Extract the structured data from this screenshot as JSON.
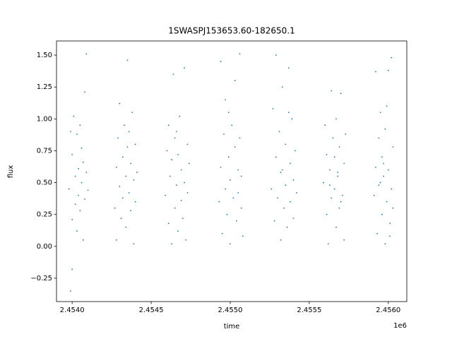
{
  "chart_data": {
    "type": "scatter",
    "title": "1SWASPJ153653.60-182650.1",
    "x_label": "time",
    "y_label": "flux",
    "x_offset_label": "1e6",
    "color": "#1f77b4",
    "xlim": [
      2.453901,
      2.456117
    ],
    "ylim": [
      -0.433,
      1.611
    ],
    "xticks": [
      {
        "value": 2.454,
        "label": "2.4540"
      },
      {
        "value": 2.4545,
        "label": "2.4545"
      },
      {
        "value": 2.455,
        "label": "2.4550"
      },
      {
        "value": 2.4555,
        "label": "2.4555"
      },
      {
        "value": 2.456,
        "label": "2.4560"
      }
    ],
    "yticks": [
      {
        "value": -0.25,
        "label": "−0.25"
      },
      {
        "value": 0,
        "label": "0.00"
      },
      0.25,
      {
        "value": 0.5,
        "label": "0.50"
      },
      0.75,
      {
        "value": 1,
        "label": "1.00"
      },
      1.25,
      {
        "value": 1.5,
        "label": "1.50"
      }
    ],
    "x": [
      2.45398,
      2.45399,
      2.454,
      2.454,
      2.45401,
      2.45402,
      2.45402,
      2.45403,
      2.45403,
      2.45404,
      2.45404,
      2.45405,
      2.45405,
      2.45406,
      2.45406,
      2.45407,
      2.45407,
      2.45408,
      2.45408,
      2.45409,
      2.45409,
      2.4541,
      2.45399,
      2.454,
      2.45427,
      2.45428,
      2.45428,
      2.45429,
      2.4543,
      2.4543,
      2.45431,
      2.45432,
      2.45432,
      2.45433,
      2.45434,
      2.45434,
      2.45435,
      2.45435,
      2.45436,
      2.45437,
      2.45437,
      2.45438,
      2.45439,
      2.45439,
      2.4544,
      2.4544,
      2.45441,
      2.45436,
      2.45459,
      2.4546,
      2.45461,
      2.45461,
      2.45462,
      2.45463,
      2.45463,
      2.45464,
      2.45465,
      2.45465,
      2.45466,
      2.45467,
      2.45467,
      2.45468,
      2.45469,
      2.45469,
      2.4547,
      2.45471,
      2.45471,
      2.45472,
      2.45473,
      2.45473,
      2.45474,
      2.45466,
      2.45493,
      2.45494,
      2.45494,
      2.45495,
      2.45496,
      2.45497,
      2.45497,
      2.45498,
      2.45499,
      2.455,
      2.455,
      2.45501,
      2.45502,
      2.45503,
      2.45503,
      2.45504,
      2.45505,
      2.45505,
      2.45506,
      2.45506,
      2.45507,
      2.45507,
      2.45508,
      2.45499,
      2.45526,
      2.45527,
      2.45528,
      2.45529,
      2.45529,
      2.4553,
      2.45531,
      2.45532,
      2.45532,
      2.45533,
      2.45534,
      2.45535,
      2.45535,
      2.45536,
      2.45537,
      2.45538,
      2.45538,
      2.45539,
      2.4554,
      2.4554,
      2.45541,
      2.45542,
      2.45533,
      2.45537,
      2.45559,
      2.4556,
      2.45561,
      2.45561,
      2.45562,
      2.45563,
      2.45564,
      2.45564,
      2.45565,
      2.45566,
      2.45567,
      2.45567,
      2.45568,
      2.45569,
      2.45569,
      2.4557,
      2.45571,
      2.45572,
      2.45572,
      2.45573,
      2.45563,
      2.45566,
      2.4557,
      2.45568,
      2.45591,
      2.45592,
      2.45592,
      2.45593,
      2.45594,
      2.45594,
      2.45595,
      2.45596,
      2.45596,
      2.45597,
      2.45598,
      2.45598,
      2.45599,
      2.456,
      2.456,
      2.45601,
      2.45602,
      2.45602,
      2.45603,
      2.45603,
      2.45597,
      2.45595,
      2.45599,
      2.45601
    ],
    "values": [
      0.45,
      -0.35,
      0.72,
      0.21,
      1.02,
      0.55,
      0.33,
      0.88,
      0.12,
      0.61,
      0.4,
      0.95,
      0.28,
      0.5,
      0.77,
      0.05,
      0.66,
      1.21,
      0.37,
      0.58,
      1.51,
      0.44,
      0.9,
      -0.18,
      0.3,
      0.62,
      0.05,
      0.85,
      0.47,
      1.12,
      0.22,
      0.7,
      0.38,
      0.95,
      0.55,
      0.15,
      0.78,
      1.46,
      0.42,
      0.65,
      0.28,
      1.05,
      0.52,
      0.02,
      0.8,
      0.35,
      0.58,
      0.9,
      0.4,
      0.75,
      0.18,
      0.95,
      0.55,
      0.02,
      0.68,
      1.35,
      0.3,
      0.85,
      0.48,
      0.12,
      0.72,
      1.02,
      0.36,
      0.6,
      0.22,
      1.4,
      0.5,
      0.05,
      0.8,
      0.42,
      0.65,
      0.9,
      0.35,
      1.45,
      0.62,
      0.1,
      0.88,
      0.45,
      1.15,
      0.25,
      0.7,
      0.52,
      0.02,
      0.95,
      0.38,
      0.78,
      1.3,
      0.2,
      0.6,
      0.42,
      1.51,
      0.85,
      0.3,
      0.55,
      0.08,
      1.05,
      0.45,
      1.08,
      0.2,
      0.7,
      1.5,
      0.38,
      0.9,
      0.05,
      0.58,
      1.25,
      0.3,
      0.8,
      0.48,
      0.15,
      1.4,
      0.65,
      0.35,
      1.0,
      0.52,
      0.22,
      0.75,
      0.42,
      0.6,
      1.05,
      0.5,
      0.95,
      0.25,
      0.72,
      0.02,
      0.6,
      1.22,
      0.38,
      0.85,
      0.45,
      0.15,
      1.0,
      0.55,
      0.3,
      0.78,
      1.2,
      0.4,
      0.65,
      0.05,
      0.88,
      0.48,
      0.7,
      0.35,
      0.58,
      0.4,
      1.37,
      0.62,
      0.1,
      0.85,
      0.48,
      1.05,
      0.25,
      0.7,
      0.55,
      0.02,
      0.92,
      0.35,
      1.38,
      0.6,
      0.18,
      1.48,
      0.45,
      0.78,
      0.3,
      0.65,
      0.5,
      1.1,
      0.08
    ]
  }
}
